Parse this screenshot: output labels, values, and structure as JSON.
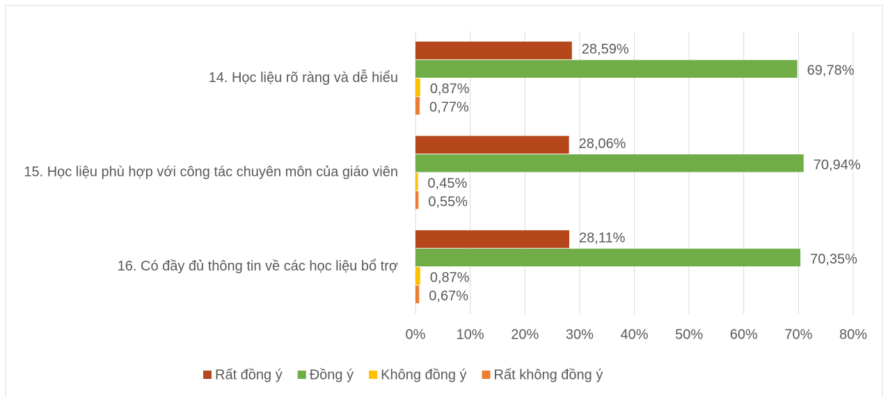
{
  "chart_data": {
    "type": "bar",
    "orientation": "horizontal",
    "categories": [
      "14. Học liệu rõ ràng và dễ hiểu",
      "15. Học liệu phù hợp với công tác chuyên môn của giáo viên",
      "16. Có đầy đủ thông tin về các học liệu bổ trợ"
    ],
    "series": [
      {
        "name": "Rất đồng ý",
        "color": "#b5471b",
        "values": [
          28.59,
          28.06,
          28.11
        ],
        "value_labels": [
          "28,59%",
          "28,06%",
          "28,11%"
        ]
      },
      {
        "name": "Đồng ý",
        "color": "#70ad47",
        "values": [
          69.78,
          70.94,
          70.35
        ],
        "value_labels": [
          "69,78%",
          "70,94%",
          "70,35%"
        ]
      },
      {
        "name": "Không đồng ý",
        "color": "#ffc000",
        "values": [
          0.87,
          0.45,
          0.87
        ],
        "value_labels": [
          "0,87%",
          "0,45%",
          "0,87%"
        ]
      },
      {
        "name": "Rất không đồng ý",
        "color": "#ed7d31",
        "values": [
          0.77,
          0.55,
          0.67
        ],
        "value_labels": [
          "0,77%",
          "0,55%",
          "0,67%"
        ]
      }
    ],
    "xlim": [
      0,
      80
    ],
    "xticks": [
      {
        "value": 0,
        "label": "0%"
      },
      {
        "value": 10,
        "label": "10%"
      },
      {
        "value": 20,
        "label": "20%"
      },
      {
        "value": 30,
        "label": "30%"
      },
      {
        "value": 40,
        "label": "40%"
      },
      {
        "value": 50,
        "label": "50%"
      },
      {
        "value": 60,
        "label": "60%"
      },
      {
        "value": 70,
        "label": "70%"
      },
      {
        "value": 80,
        "label": "80%"
      }
    ],
    "grid": true,
    "legend": "bottom"
  }
}
